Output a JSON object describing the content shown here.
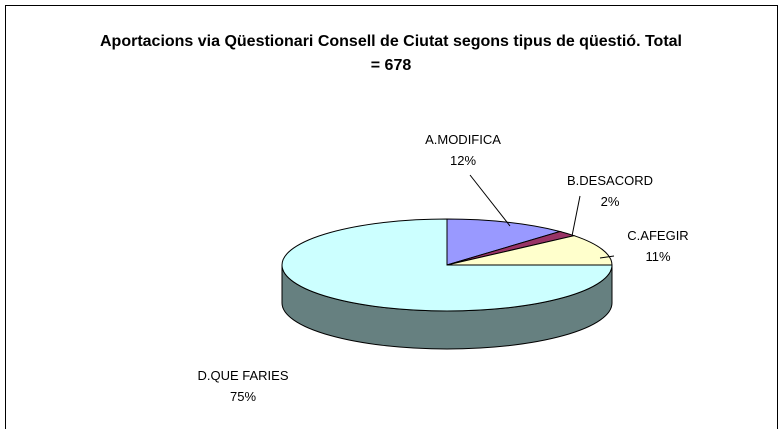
{
  "chart_data": {
    "type": "pie3d",
    "title": "Aportacions via Qüestionari Consell de Ciutat segons tipus de qüestió. Total = 678",
    "categories": [
      "A.MODIFICA",
      "B.DESACORD",
      "C.AFEGIR",
      "D.QUE FARIES"
    ],
    "values": [
      12,
      2,
      11,
      75
    ],
    "value_labels": [
      "12%",
      "2%",
      "11%",
      "75%"
    ],
    "colors": [
      "#9999ff",
      "#993366",
      "#ffffcc",
      "#ccffff"
    ]
  }
}
